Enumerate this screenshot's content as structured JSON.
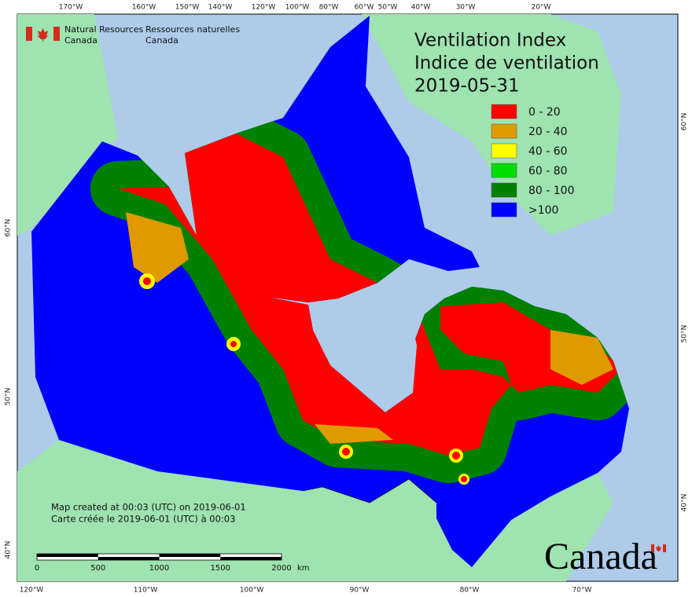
{
  "header": {
    "agency_en": [
      "Natural Resources",
      "Canada"
    ],
    "agency_fr": [
      "Ressources naturelles",
      "Canada"
    ]
  },
  "title": [
    "Ventilation Index",
    "Indice de ventilation",
    "2019-05-31"
  ],
  "legend": [
    {
      "label": "0 - 20",
      "color": "#ff0000"
    },
    {
      "label": "20 - 40",
      "color": "#e09a00"
    },
    {
      "label": "40 - 60",
      "color": "#ffff00"
    },
    {
      "label": "60 - 80",
      "color": "#00dd00"
    },
    {
      "label": "80 - 100",
      "color": "#008000"
    },
    {
      "label": ">100",
      "color": "#0000ff"
    }
  ],
  "graticule": {
    "top": [
      "170°W",
      "160°W",
      "150°W",
      "140°W",
      "120°W",
      "100°W",
      "80°W",
      "60°W",
      "50°W",
      "40°W",
      "30°W",
      "20°W"
    ],
    "bottom": [
      "120°W",
      "110°W",
      "100°W",
      "90°W",
      "80°W",
      "70°W"
    ],
    "left": [
      "60°N",
      "50°N",
      "40°N"
    ],
    "right": [
      "60°N",
      "50°N",
      "40°N"
    ]
  },
  "notes": [
    "Map created at 00:03 (UTC) on 2019-06-01",
    "Carte créée le 2019-06-01 (UTC) à 00:03"
  ],
  "scale_bar": {
    "ticks": [
      0,
      500,
      1000,
      1500,
      2000
    ],
    "unit": "km"
  },
  "wordmark": "Canada"
}
